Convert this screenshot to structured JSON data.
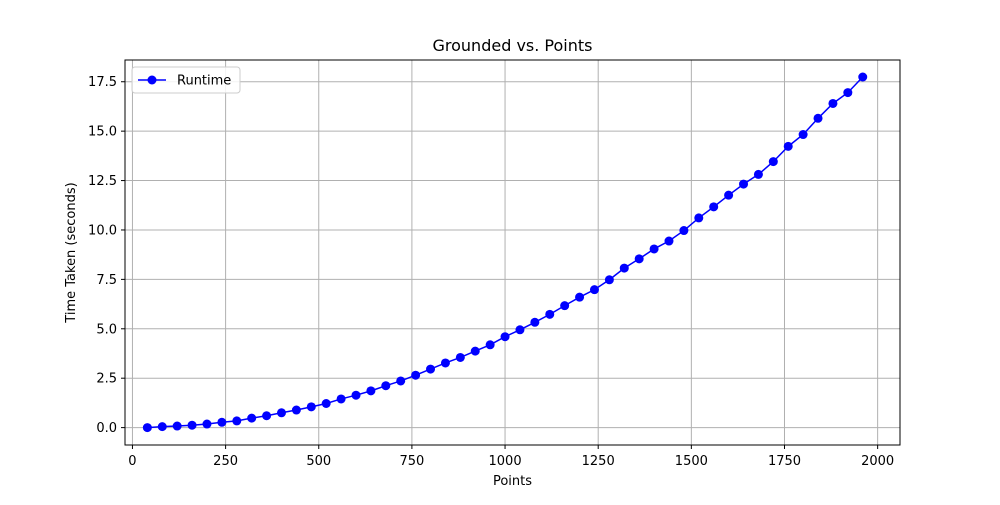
{
  "chart_data": {
    "type": "line",
    "title": "Grounded vs. Points",
    "xlabel": "Points",
    "ylabel": "Time Taken (seconds)",
    "xlim": [
      -20,
      2060
    ],
    "ylim": [
      -0.88,
      18.6
    ],
    "xticks": [
      0,
      250,
      500,
      750,
      1000,
      1250,
      1500,
      1750,
      2000
    ],
    "xtick_labels": [
      "0",
      "250",
      "500",
      "750",
      "1000",
      "1250",
      "1500",
      "1750",
      "2000"
    ],
    "yticks": [
      0,
      2.5,
      5,
      7.5,
      10,
      12.5,
      15,
      17.5
    ],
    "ytick_labels": [
      "0.0",
      "2.5",
      "5.0",
      "7.5",
      "10.0",
      "12.5",
      "15.0",
      "17.5"
    ],
    "grid": true,
    "legend_position": "top-left",
    "series": [
      {
        "name": "Runtime",
        "color": "#0000ff",
        "marker": "circle",
        "x": [
          40,
          80,
          120,
          160,
          200,
          240,
          280,
          320,
          360,
          400,
          440,
          480,
          520,
          560,
          600,
          640,
          680,
          720,
          760,
          800,
          840,
          880,
          920,
          960,
          1000,
          1040,
          1080,
          1120,
          1160,
          1200,
          1240,
          1280,
          1320,
          1360,
          1400,
          1440,
          1480,
          1520,
          1560,
          1600,
          1640,
          1680,
          1720,
          1760,
          1800,
          1840,
          1880,
          1920,
          1960
        ],
        "y": [
          0.0,
          0.05,
          0.08,
          0.12,
          0.18,
          0.27,
          0.34,
          0.48,
          0.6,
          0.75,
          0.89,
          1.05,
          1.22,
          1.45,
          1.64,
          1.86,
          2.12,
          2.36,
          2.65,
          2.96,
          3.27,
          3.55,
          3.87,
          4.19,
          4.6,
          4.95,
          5.33,
          5.73,
          6.17,
          6.6,
          6.98,
          7.48,
          8.07,
          8.54,
          9.04,
          9.44,
          9.97,
          10.61,
          11.17,
          11.76,
          12.32,
          12.81,
          13.46,
          14.23,
          14.83,
          15.65,
          16.4,
          16.95,
          17.74
        ]
      }
    ]
  }
}
